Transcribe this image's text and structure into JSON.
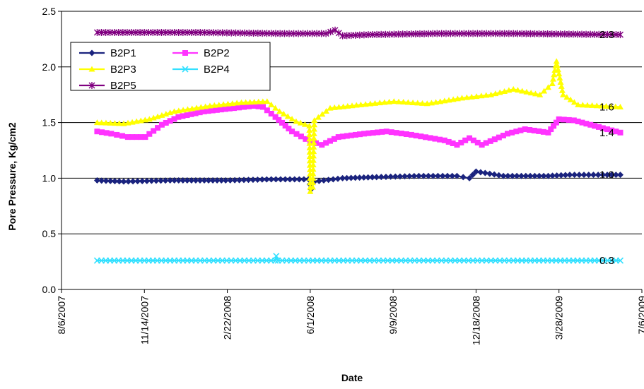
{
  "chart_data": {
    "type": "line",
    "title": "",
    "xlabel": "Date",
    "ylabel": "Pore Pressure, Kg/cm2",
    "ylim": [
      0,
      2.5
    ],
    "yticks": [
      "0.0",
      "0.5",
      "1.0",
      "1.5",
      "2.0",
      "2.5"
    ],
    "xlim": [
      "2007-08-06",
      "2009-07-06"
    ],
    "xticks": [
      "8/6/2007",
      "11/14/2007",
      "2/22/2008",
      "6/1/2008",
      "9/9/2008",
      "12/18/2008",
      "3/28/2009",
      "7/6/2009"
    ],
    "grid": "horizontal",
    "legend_position": "top-left",
    "series": [
      {
        "name": "B2P1",
        "color": "#1a237e",
        "marker": "diamond",
        "points": [
          [
            "2007-09-18",
            0.98
          ],
          [
            "2007-10-20",
            0.97
          ],
          [
            "2007-12-15",
            0.98
          ],
          [
            "2008-02-20",
            0.98
          ],
          [
            "2008-04-15",
            0.99
          ],
          [
            "2008-05-30",
            0.99
          ],
          [
            "2008-06-02",
            0.9
          ],
          [
            "2008-06-06",
            0.97
          ],
          [
            "2008-07-10",
            1.0
          ],
          [
            "2008-08-20",
            1.01
          ],
          [
            "2008-10-10",
            1.02
          ],
          [
            "2008-11-25",
            1.02
          ],
          [
            "2008-12-10",
            1.0
          ],
          [
            "2008-12-18",
            1.06
          ],
          [
            "2009-01-20",
            1.02
          ],
          [
            "2009-03-15",
            1.02
          ],
          [
            "2009-04-10",
            1.03
          ],
          [
            "2009-05-20",
            1.03
          ],
          [
            "2009-06-10",
            1.03
          ]
        ],
        "end_label": "1.0"
      },
      {
        "name": "B2P2",
        "color": "#ff33ff",
        "marker": "square",
        "points": [
          [
            "2007-09-18",
            1.42
          ],
          [
            "2007-10-05",
            1.4
          ],
          [
            "2007-10-25",
            1.37
          ],
          [
            "2007-11-15",
            1.37
          ],
          [
            "2007-12-05",
            1.48
          ],
          [
            "2007-12-25",
            1.55
          ],
          [
            "2008-01-25",
            1.6
          ],
          [
            "2008-03-01",
            1.63
          ],
          [
            "2008-03-25",
            1.65
          ],
          [
            "2008-04-05",
            1.64
          ],
          [
            "2008-04-20",
            1.55
          ],
          [
            "2008-05-10",
            1.42
          ],
          [
            "2008-06-01",
            1.33
          ],
          [
            "2008-06-15",
            1.3
          ],
          [
            "2008-07-05",
            1.37
          ],
          [
            "2008-08-05",
            1.4
          ],
          [
            "2008-09-01",
            1.42
          ],
          [
            "2008-10-01",
            1.39
          ],
          [
            "2008-11-10",
            1.34
          ],
          [
            "2008-11-25",
            1.3
          ],
          [
            "2008-12-10",
            1.36
          ],
          [
            "2008-12-25",
            1.3
          ],
          [
            "2009-01-25",
            1.4
          ],
          [
            "2009-02-15",
            1.44
          ],
          [
            "2009-03-15",
            1.41
          ],
          [
            "2009-03-28",
            1.53
          ],
          [
            "2009-04-15",
            1.52
          ],
          [
            "2009-05-20",
            1.45
          ],
          [
            "2009-06-10",
            1.41
          ]
        ],
        "end_label": "1.4"
      },
      {
        "name": "B2P3",
        "color": "#ffff00",
        "marker": "triangle",
        "points": [
          [
            "2007-09-18",
            1.5
          ],
          [
            "2007-10-20",
            1.49
          ],
          [
            "2007-11-20",
            1.53
          ],
          [
            "2007-12-20",
            1.6
          ],
          [
            "2008-02-01",
            1.65
          ],
          [
            "2008-03-10",
            1.68
          ],
          [
            "2008-04-10",
            1.69
          ],
          [
            "2008-04-25",
            1.6
          ],
          [
            "2008-05-15",
            1.51
          ],
          [
            "2008-05-31",
            1.47
          ],
          [
            "2008-06-01",
            0.88
          ],
          [
            "2008-06-04",
            0.92
          ],
          [
            "2008-06-06",
            1.52
          ],
          [
            "2008-06-25",
            1.63
          ],
          [
            "2008-08-01",
            1.66
          ],
          [
            "2008-09-10",
            1.69
          ],
          [
            "2008-10-20",
            1.67
          ],
          [
            "2008-12-01",
            1.72
          ],
          [
            "2009-01-05",
            1.75
          ],
          [
            "2009-02-01",
            1.8
          ],
          [
            "2009-03-05",
            1.75
          ],
          [
            "2009-03-20",
            1.85
          ],
          [
            "2009-03-25",
            2.05
          ],
          [
            "2009-04-02",
            1.75
          ],
          [
            "2009-04-20",
            1.66
          ],
          [
            "2009-06-10",
            1.64
          ]
        ],
        "end_label": "1.6"
      },
      {
        "name": "B2P4",
        "color": "#33e0ff",
        "marker": "x",
        "points": [
          [
            "2007-09-18",
            0.26
          ],
          [
            "2008-01-15",
            0.26
          ],
          [
            "2008-04-20",
            0.26
          ],
          [
            "2008-04-21",
            0.3
          ],
          [
            "2008-04-23",
            0.26
          ],
          [
            "2008-08-01",
            0.26
          ],
          [
            "2008-11-01",
            0.26
          ],
          [
            "2009-02-01",
            0.26
          ],
          [
            "2009-06-10",
            0.26
          ]
        ],
        "end_label": "0.3"
      },
      {
        "name": "B2P5",
        "color": "#800080",
        "marker": "asterisk",
        "points": [
          [
            "2007-09-18",
            2.31
          ],
          [
            "2008-01-15",
            2.31
          ],
          [
            "2008-05-01",
            2.3
          ],
          [
            "2008-06-20",
            2.3
          ],
          [
            "2008-07-01",
            2.33
          ],
          [
            "2008-07-10",
            2.28
          ],
          [
            "2008-08-10",
            2.29
          ],
          [
            "2008-11-01",
            2.3
          ],
          [
            "2009-02-01",
            2.3
          ],
          [
            "2009-06-10",
            2.29
          ]
        ],
        "end_label": "2.3"
      }
    ]
  }
}
